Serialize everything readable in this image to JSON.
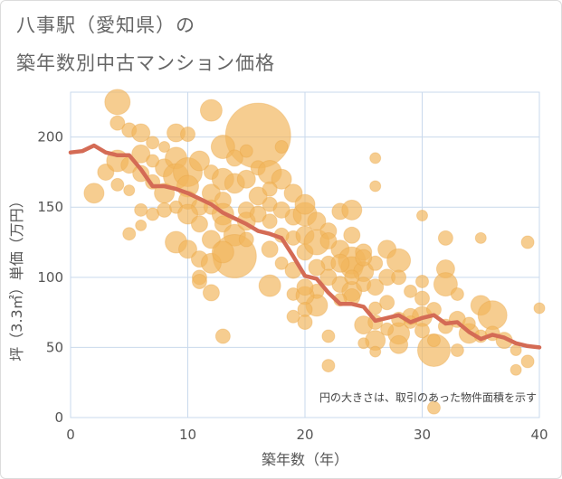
{
  "title_line1": "八事駅（愛知県）の",
  "title_line2": "築年数別中古マンション価格",
  "chart_data": {
    "type": "scatter",
    "title": "八事駅（愛知県）の築年数別中古マンション価格",
    "xlabel": "築年数（年）",
    "ylabel": "坪（3.3㎡）単価（万円）",
    "xlim": [
      0,
      40
    ],
    "ylim": [
      0,
      232
    ],
    "xticks": [
      0,
      10,
      20,
      30,
      40
    ],
    "yticks": [
      0,
      50,
      100,
      150,
      200
    ],
    "grid": true,
    "annotation": "円の大きさは、取引のあった物件面積を示す",
    "colors": {
      "bubble": "#f2b55c",
      "line": "#d46b55",
      "grid": "#c9d9ec"
    },
    "series": [
      {
        "type": "line",
        "x": [
          0,
          1,
          2,
          3,
          4,
          5,
          6,
          7,
          8,
          9,
          10,
          11,
          12,
          13,
          14,
          15,
          16,
          17,
          18,
          19,
          20,
          21,
          22,
          23,
          24,
          25,
          26,
          27,
          28,
          29,
          30,
          31,
          32,
          33,
          34,
          35,
          36,
          37,
          38,
          39,
          40
        ],
        "y": [
          189,
          190,
          194,
          189,
          187,
          187,
          177,
          165,
          165,
          163,
          160,
          156,
          152,
          146,
          142,
          138,
          133,
          131,
          128,
          115,
          101,
          99,
          89,
          81,
          81,
          79,
          69,
          71,
          73,
          68,
          71,
          73,
          67,
          68,
          61,
          56,
          59,
          57,
          53,
          51,
          50
        ]
      },
      {
        "type": "bubble",
        "points": [
          [
            4,
            225,
            14
          ],
          [
            4,
            210,
            8
          ],
          [
            5,
            205,
            8
          ],
          [
            6,
            203,
            10
          ],
          [
            7,
            196,
            7
          ],
          [
            9,
            203,
            10
          ],
          [
            10,
            202,
            8
          ],
          [
            12,
            219,
            12
          ],
          [
            16,
            201,
            36
          ],
          [
            2,
            160,
            11
          ],
          [
            3,
            175,
            9
          ],
          [
            4,
            183,
            12
          ],
          [
            4,
            166,
            7
          ],
          [
            5,
            162,
            6
          ],
          [
            5,
            180,
            9
          ],
          [
            6,
            188,
            10
          ],
          [
            6,
            174,
            9
          ],
          [
            7,
            168,
            8
          ],
          [
            8,
            178,
            10
          ],
          [
            8,
            160,
            11
          ],
          [
            9,
            185,
            12
          ],
          [
            9,
            172,
            14
          ],
          [
            10,
            175,
            16
          ],
          [
            10,
            165,
            12
          ],
          [
            10,
            155,
            10
          ],
          [
            11,
            183,
            11
          ],
          [
            11,
            150,
            9
          ],
          [
            12,
            175,
            8
          ],
          [
            12,
            160,
            10
          ],
          [
            13,
            193,
            13
          ],
          [
            13,
            170,
            12
          ],
          [
            13,
            155,
            9
          ],
          [
            14,
            185,
            9
          ],
          [
            14,
            167,
            11
          ],
          [
            15,
            170,
            10
          ],
          [
            15,
            148,
            9
          ],
          [
            16,
            178,
            8
          ],
          [
            17,
            175,
            13
          ],
          [
            17,
            152,
            8
          ],
          [
            18,
            170,
            11
          ],
          [
            19,
            160,
            10
          ],
          [
            19,
            143,
            9
          ],
          [
            6,
            148,
            7
          ],
          [
            6,
            137,
            6
          ],
          [
            7,
            145,
            7
          ],
          [
            8,
            148,
            8
          ],
          [
            9,
            150,
            7
          ],
          [
            10,
            145,
            11
          ],
          [
            11,
            138,
            9
          ],
          [
            12,
            150,
            8
          ],
          [
            13,
            145,
            12
          ],
          [
            13,
            138,
            9
          ],
          [
            14,
            130,
            12
          ],
          [
            14,
            115,
            24
          ],
          [
            15,
            140,
            10
          ],
          [
            16,
            145,
            9
          ],
          [
            17,
            140,
            8
          ],
          [
            18,
            148,
            9
          ],
          [
            5,
            131,
            7
          ],
          [
            9,
            125,
            12
          ],
          [
            10,
            120,
            10
          ],
          [
            11,
            113,
            9
          ],
          [
            11,
            100,
            8
          ],
          [
            11,
            97,
            8
          ],
          [
            12,
            127,
            10
          ],
          [
            12,
            110,
            11
          ],
          [
            12,
            89,
            9
          ],
          [
            13,
            118,
            12
          ],
          [
            13,
            58,
            8
          ],
          [
            15,
            127,
            8
          ],
          [
            17,
            120,
            9
          ],
          [
            17,
            94,
            12
          ],
          [
            18,
            110,
            7
          ],
          [
            19,
            128,
            8
          ],
          [
            19,
            105,
            9
          ],
          [
            19,
            88,
            7
          ],
          [
            20,
            130,
            10
          ],
          [
            20,
            118,
            9
          ],
          [
            20,
            145,
            13
          ],
          [
            20,
            152,
            11
          ],
          [
            21,
            140,
            10
          ],
          [
            21,
            125,
            14
          ],
          [
            22,
            133,
            9
          ],
          [
            22,
            110,
            8
          ],
          [
            23,
            147,
            9
          ],
          [
            23,
            120,
            10
          ],
          [
            24,
            148,
            11
          ],
          [
            24,
            130,
            9
          ],
          [
            24,
            112,
            15
          ],
          [
            24,
            107,
            12
          ],
          [
            23,
            110,
            10
          ],
          [
            23,
            95,
            9
          ],
          [
            22,
            100,
            9
          ],
          [
            21,
            90,
            8
          ],
          [
            21,
            80,
            12
          ],
          [
            20,
            87,
            10
          ],
          [
            20,
            77,
            8
          ],
          [
            20,
            68,
            8
          ],
          [
            22,
            58,
            7
          ],
          [
            22,
            37,
            7
          ],
          [
            24,
            90,
            11
          ],
          [
            24,
            86,
            9
          ],
          [
            25,
            118,
            9
          ],
          [
            25,
            104,
            11
          ],
          [
            25,
            95,
            8
          ],
          [
            25,
            66,
            10
          ],
          [
            26,
            110,
            8
          ],
          [
            26,
            93,
            9
          ],
          [
            26,
            78,
            7
          ],
          [
            26,
            55,
            11
          ],
          [
            26,
            68,
            8
          ],
          [
            27,
            120,
            10
          ],
          [
            27,
            100,
            9
          ],
          [
            27,
            82,
            8
          ],
          [
            28,
            112,
            13
          ],
          [
            28,
            100,
            8
          ],
          [
            28,
            60,
            12
          ],
          [
            28,
            52,
            10
          ],
          [
            29,
            90,
            7
          ],
          [
            29,
            72,
            9
          ],
          [
            30,
            97,
            7
          ],
          [
            30,
            85,
            8
          ],
          [
            30,
            72,
            11
          ],
          [
            30,
            144,
            6
          ],
          [
            31,
            77,
            8
          ],
          [
            31,
            48,
            18
          ],
          [
            31,
            7,
            7
          ],
          [
            32,
            128,
            8
          ],
          [
            32,
            106,
            10
          ],
          [
            32,
            95,
            13
          ],
          [
            33,
            88,
            7
          ],
          [
            33,
            70,
            9
          ],
          [
            33,
            48,
            7
          ],
          [
            34,
            60,
            11
          ],
          [
            35,
            80,
            11
          ],
          [
            35,
            128,
            6
          ],
          [
            36,
            73,
            16
          ],
          [
            36,
            60,
            8
          ],
          [
            37,
            55,
            9
          ],
          [
            38,
            34,
            6
          ],
          [
            38,
            48,
            6
          ],
          [
            39,
            125,
            7
          ],
          [
            39,
            40,
            7
          ],
          [
            40,
            78,
            6
          ],
          [
            25,
            114,
            9
          ],
          [
            24,
            100,
            8
          ],
          [
            23,
            84,
            7
          ],
          [
            22,
            126,
            9
          ],
          [
            21,
            107,
            9
          ],
          [
            20,
            93,
            9
          ],
          [
            19,
            72,
            7
          ],
          [
            18,
            130,
            8
          ],
          [
            25,
            53,
            6
          ],
          [
            26,
            47,
            6
          ],
          [
            27,
            63,
            7
          ],
          [
            29,
            68,
            7
          ],
          [
            32,
            65,
            8
          ],
          [
            34,
            67,
            7
          ],
          [
            35,
            58,
            7
          ],
          [
            30,
            62,
            8
          ],
          [
            31,
            55,
            7
          ],
          [
            28,
            70,
            8
          ],
          [
            26,
            185,
            6
          ],
          [
            26,
            165,
            6
          ],
          [
            15,
            190,
            7
          ],
          [
            18,
            193,
            7
          ],
          [
            8,
            193,
            6
          ],
          [
            7,
            183,
            7
          ],
          [
            16,
            158,
            10
          ],
          [
            17,
            163,
            8
          ]
        ]
      }
    ]
  }
}
